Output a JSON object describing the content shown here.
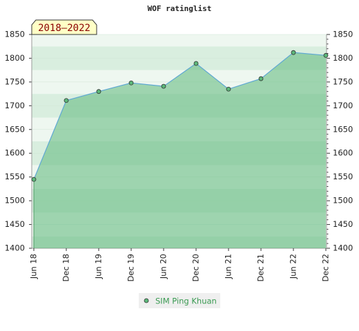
{
  "chart_data": {
    "type": "area",
    "title": "WOF ratinglist",
    "annotation": "2018–2022",
    "categories": [
      "Jun 18",
      "Dec 18",
      "Jun 19",
      "Dec 19",
      "Jun 20",
      "Dec 20",
      "Jun 21",
      "Dec 21",
      "Jun 22",
      "Dec 22"
    ],
    "series": [
      {
        "name": "SIM Ping Khuan",
        "color": "#5fa8d3",
        "fill": "#5cb87a",
        "values": [
          1545,
          1711,
          1730,
          1748,
          1741,
          1789,
          1735,
          1757,
          1812,
          1806
        ]
      }
    ],
    "ylim": [
      1400,
      1850
    ],
    "yticks": [
      1400,
      1450,
      1500,
      1550,
      1600,
      1650,
      1700,
      1750,
      1800,
      1850
    ],
    "y2lim": [
      1400,
      1850
    ],
    "y2ticks": [
      1400,
      1450,
      1500,
      1550,
      1600,
      1650,
      1700,
      1750,
      1800,
      1850
    ],
    "grid": true
  }
}
